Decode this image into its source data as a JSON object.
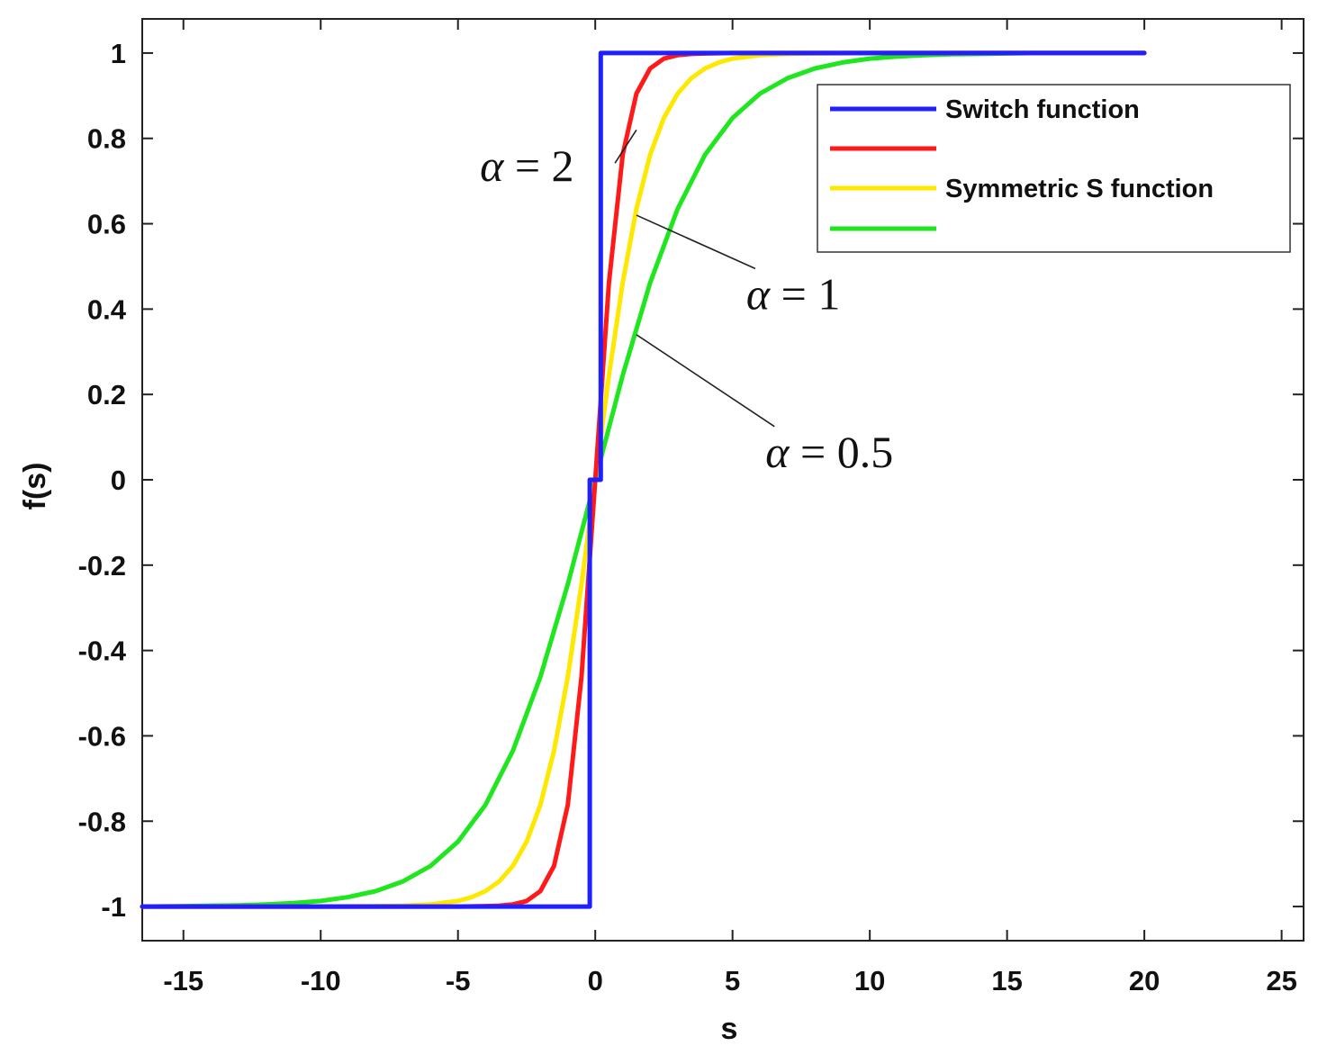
{
  "chart_data": {
    "type": "line",
    "xlabel": "s",
    "ylabel": "f(s)",
    "xlim": [
      -16.5,
      25.8
    ],
    "ylim": [
      -1.08,
      1.08
    ],
    "xticks": [
      -15,
      -10,
      -5,
      0,
      5,
      10,
      15,
      20,
      25
    ],
    "xtick_labels": [
      "-15",
      "-10",
      "-5",
      "0",
      "5",
      "10",
      "15",
      "20",
      "25"
    ],
    "yticks": [
      1,
      0.8,
      0.6,
      0.4,
      0.2,
      0,
      -0.2,
      -0.4,
      -0.6,
      -0.8,
      -1
    ],
    "ytick_labels": [
      "1",
      "0.8",
      "0.6",
      "0.4",
      "0.2",
      "0",
      "-0.2",
      "-0.4",
      "-0.6",
      "-0.8",
      "-1"
    ],
    "grid": false,
    "legend_position": "top-right",
    "series": [
      {
        "name": "Switch function",
        "color": "#1f1fff",
        "x": [
          -16.5,
          -0.2,
          -0.2,
          0.2,
          0.2,
          20
        ],
        "y": [
          -1,
          -1,
          0,
          0,
          1,
          1
        ]
      },
      {
        "color": "#ff1a1a",
        "x": [
          -16.5,
          -6,
          -5,
          -4,
          -3.5,
          -3,
          -2.5,
          -2,
          -1.5,
          -1,
          -0.5,
          0,
          0.5,
          1,
          1.5,
          2,
          2.5,
          3,
          3.5,
          4,
          5,
          6,
          20
        ],
        "y": [
          -1,
          -1,
          -1,
          -0.999,
          -0.998,
          -0.995,
          -0.987,
          -0.964,
          -0.905,
          -0.762,
          -0.462,
          0,
          0.462,
          0.762,
          0.905,
          0.964,
          0.987,
          0.995,
          0.998,
          0.999,
          1,
          1,
          1
        ]
      },
      {
        "color": "#ffe800",
        "x": [
          -16.5,
          -10,
          -8,
          -7,
          -6,
          -5,
          -4.5,
          -4,
          -3.5,
          -3,
          -2.5,
          -2,
          -1.5,
          -1,
          -0.5,
          0,
          0.5,
          1,
          1.5,
          2,
          2.5,
          3,
          3.5,
          4,
          4.5,
          5,
          6,
          7,
          8,
          10,
          20
        ],
        "y": [
          -1,
          -1,
          -0.999,
          -0.998,
          -0.995,
          -0.987,
          -0.978,
          -0.964,
          -0.941,
          -0.905,
          -0.848,
          -0.762,
          -0.635,
          -0.462,
          -0.245,
          0,
          0.245,
          0.462,
          0.635,
          0.762,
          0.848,
          0.905,
          0.941,
          0.964,
          0.978,
          0.987,
          0.995,
          0.998,
          0.999,
          1,
          1
        ]
      },
      {
        "color": "#1fe61f",
        "x": [
          -16.5,
          -15,
          -14,
          -13,
          -12,
          -11,
          -10,
          -9,
          -8,
          -7,
          -6,
          -5,
          -4,
          -3,
          -2,
          -1,
          0,
          1,
          2,
          3,
          4,
          5,
          6,
          7,
          8,
          9,
          10,
          11,
          12,
          13,
          14,
          15,
          16,
          18,
          20
        ],
        "y": [
          -1,
          -0.999,
          -0.998,
          -0.997,
          -0.995,
          -0.992,
          -0.987,
          -0.978,
          -0.964,
          -0.941,
          -0.905,
          -0.848,
          -0.762,
          -0.635,
          -0.462,
          -0.245,
          0,
          0.245,
          0.462,
          0.635,
          0.762,
          0.848,
          0.905,
          0.941,
          0.964,
          0.978,
          0.987,
          0.992,
          0.995,
          0.997,
          0.998,
          0.999,
          1,
          1,
          1
        ]
      }
    ],
    "legend_entries": [
      "Switch function",
      "",
      "Symmetric S function",
      ""
    ],
    "annotations": [
      {
        "text_symbol": "α",
        "text_rest": " = 2",
        "point": [
          1.5,
          0.82
        ],
        "label_at": [
          -4.2,
          0.7
        ]
      },
      {
        "text_symbol": "α",
        "text_rest": " = 1",
        "point": [
          1.5,
          0.62
        ],
        "label_at": [
          5.5,
          0.4
        ]
      },
      {
        "text_symbol": "α",
        "text_rest": " = 0.5",
        "point": [
          1.5,
          0.34
        ],
        "label_at": [
          6.2,
          0.03
        ]
      }
    ]
  }
}
